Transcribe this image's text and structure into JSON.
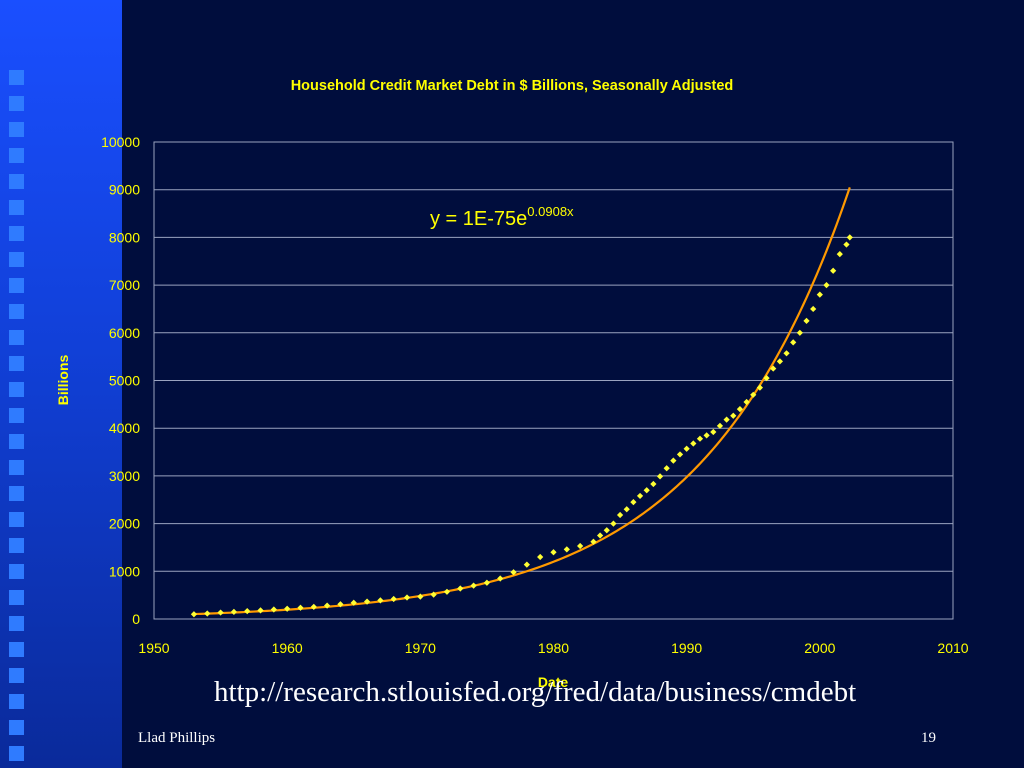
{
  "slide": {
    "url": "http://research.stlouisfed.org/fred/data/business/cmdebt",
    "author": "Llad Phillips",
    "page_number": "19"
  },
  "colors": {
    "background": "#000d3d",
    "sidebar": "#1446e6",
    "accent_text": "#ffff00",
    "data_points": "#ffff33",
    "trend_line": "#ff9900",
    "grid": "#9aa3c0"
  },
  "chart_data": {
    "type": "scatter",
    "title": "Household Credit Market Debt in $ Billions, Seasonally Adjusted",
    "xlabel": "Date",
    "ylabel": "Billions",
    "xlim": [
      1950,
      2010
    ],
    "ylim": [
      0,
      10000
    ],
    "xticks": [
      1950,
      1960,
      1970,
      1980,
      1990,
      2000,
      2010
    ],
    "yticks": [
      0,
      1000,
      2000,
      3000,
      4000,
      5000,
      6000,
      7000,
      8000,
      9000,
      10000
    ],
    "grid": "horizontal",
    "trendline": {
      "type": "exponential",
      "equation_text": "y = 1E-75e",
      "equation_exponent": "0.0908x",
      "x_start": 1953,
      "x_end": 2002.25
    },
    "series": [
      {
        "x": [
          1953.0,
          1954.0,
          1955.0,
          1956.0,
          1957.0,
          1958.0,
          1959.0,
          1960.0,
          1961.0,
          1962.0,
          1963.0,
          1964.0,
          1965.0,
          1966.0,
          1967.0,
          1968.0,
          1969.0,
          1970.0,
          1971.0,
          1972.0,
          1973.0,
          1974.0,
          1975.0,
          1976.0,
          1977.0,
          1978.0,
          1979.0,
          1980.0,
          1981.0,
          1982.0,
          1983.0,
          1983.5,
          1984.0,
          1984.5,
          1985.0,
          1985.5,
          1986.0,
          1986.5,
          1987.0,
          1987.5,
          1988.0,
          1988.5,
          1989.0,
          1989.5,
          1990.0,
          1990.5,
          1991.0,
          1991.5,
          1992.0,
          1992.5,
          1993.0,
          1993.5,
          1994.0,
          1994.5,
          1995.0,
          1995.5,
          1996.0,
          1996.5,
          1997.0,
          1997.5,
          1998.0,
          1998.5,
          1999.0,
          1999.5,
          2000.0,
          2000.5,
          2001.0,
          2001.5,
          2002.0,
          2002.25
        ],
        "values": [
          100,
          115,
          135,
          150,
          165,
          180,
          200,
          215,
          235,
          255,
          280,
          310,
          340,
          365,
          390,
          420,
          450,
          470,
          510,
          570,
          640,
          700,
          760,
          850,
          980,
          1140,
          1300,
          1400,
          1460,
          1530,
          1620,
          1750,
          1860,
          2000,
          2180,
          2300,
          2450,
          2580,
          2700,
          2830,
          2990,
          3160,
          3320,
          3450,
          3570,
          3680,
          3780,
          3850,
          3920,
          4050,
          4180,
          4260,
          4400,
          4550,
          4700,
          4850,
          5050,
          5250,
          5400,
          5570,
          5800,
          6000,
          6250,
          6500,
          6800,
          7000,
          7300,
          7650,
          7850,
          8000
        ]
      }
    ]
  }
}
